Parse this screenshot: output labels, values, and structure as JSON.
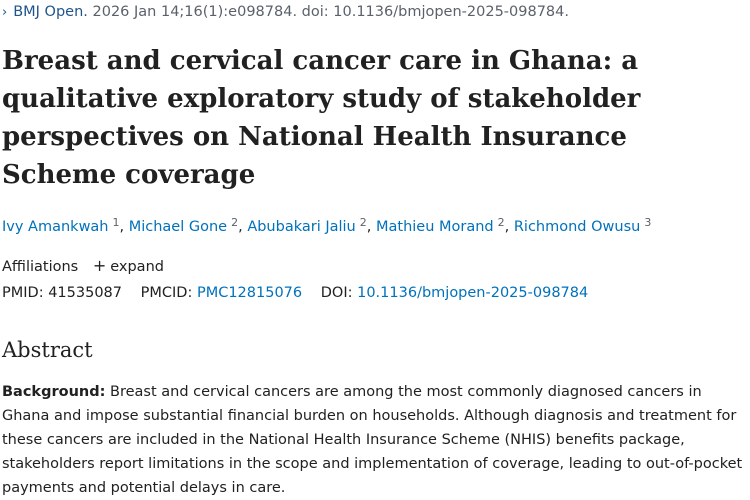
{
  "citation": {
    "chevron": "›",
    "journal": "BMJ Open.",
    "details": "2026 Jan 14;16(1):e098784. doi: 10.1136/bmjopen-2025-098784."
  },
  "article_title": "Breast and cervical cancer care in Ghana: a qualitative exploratory study of stakeholder perspectives on National Health Insurance Scheme coverage",
  "authors": [
    {
      "name": "Ivy Amankwah",
      "sup": "1"
    },
    {
      "name": "Michael Gone",
      "sup": "2"
    },
    {
      "name": "Abubakari Jaliu",
      "sup": "2"
    },
    {
      "name": "Mathieu Morand",
      "sup": "2"
    },
    {
      "name": "Richmond Owusu",
      "sup": "3"
    }
  ],
  "affiliations": {
    "label": "Affiliations",
    "expand_icon": "+",
    "expand_label": "expand"
  },
  "identifiers": {
    "pmid_label": "PMID:",
    "pmid": "41535087",
    "pmcid_label": "PMCID:",
    "pmcid": "PMC12815076",
    "doi_label": "DOI:",
    "doi": "10.1136/bmjopen-2025-098784"
  },
  "abstract": {
    "heading": "Abstract",
    "background_label": "Background:",
    "background_text": "Breast and cervical cancers are among the most commonly diagnosed cancers in Ghana and impose substantial financial burden on households. Although diagnosis and treatment for these cancers are included in the National Health Insurance Scheme (NHIS) benefits package, stakeholders report limitations in the scope and implementation of coverage, leading to out-of-pocket payments and potential delays in care."
  },
  "colors": {
    "link": "#0071bc",
    "text": "#212121",
    "muted": "#5b616b"
  }
}
